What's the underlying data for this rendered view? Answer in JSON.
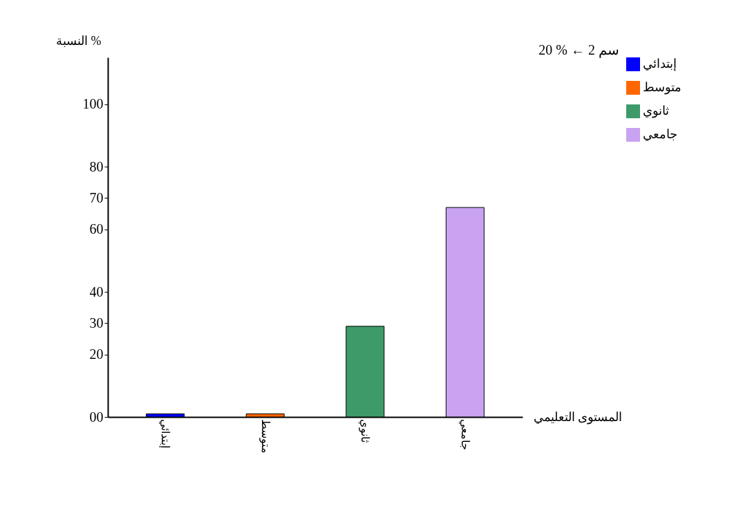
{
  "chart_data": {
    "type": "bar",
    "xlabel": "المستوى التعليمي",
    "ylabel": "النسبة %",
    "categories": [
      "إبتدائي",
      "متوسط",
      "ثانوي",
      "جامعي"
    ],
    "series": [
      {
        "name": "إبتدائي",
        "color": "#0000ff",
        "values": [
          1,
          null,
          null,
          null
        ]
      },
      {
        "name": "متوسط",
        "color": "#ff6600",
        "values": [
          null,
          1,
          null,
          null
        ]
      },
      {
        "name": "ثانوي",
        "color": "#3f9a6a",
        "values": [
          null,
          null,
          29,
          null
        ]
      },
      {
        "name": "جامعي",
        "color": "#c9a3f2",
        "values": [
          null,
          null,
          null,
          67
        ]
      }
    ],
    "ylim": [
      0,
      115
    ],
    "yticks": [
      {
        "value": 0,
        "label": "00"
      },
      20,
      30,
      40,
      60,
      70,
      80,
      100
    ],
    "grid": false,
    "legend": "top right",
    "annotations": [
      "20 % ← 2 سم"
    ]
  }
}
